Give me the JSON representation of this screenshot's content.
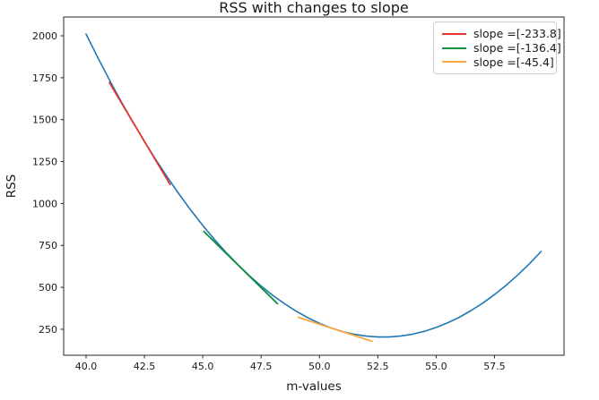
{
  "figure": {
    "title": "RSS with changes to slope",
    "xlabel": "m-values",
    "ylabel": "RSS"
  },
  "colors": {
    "curve": "#1f77b4",
    "red": "#e5352e",
    "green": "#0f8f3e",
    "orange": "#f9a63d",
    "axis": "#262626",
    "legend_border": "#cccccc"
  },
  "chart_data": {
    "type": "line",
    "title": "RSS with changes to slope",
    "xlabel": "m-values",
    "ylabel": "RSS",
    "xlim": [
      39.04,
      60.48
    ],
    "ylim": [
      95,
      2112
    ],
    "x_tick_values": [
      40.0,
      42.5,
      45.0,
      47.5,
      50.0,
      52.5,
      55.0,
      57.5
    ],
    "x_tick_labels": [
      "40.0",
      "42.5",
      "45.0",
      "47.5",
      "50.0",
      "52.5",
      "55.0",
      "57.5"
    ],
    "y_tick_values": [
      250,
      500,
      750,
      1000,
      1250,
      1500,
      1750,
      2000
    ],
    "y_tick_labels": [
      "250",
      "500",
      "750",
      "1000",
      "1250",
      "1500",
      "1750",
      "2000"
    ],
    "grid": false,
    "legend_position": "upper right",
    "series": [
      {
        "name": "RSS curve",
        "color_key": "curve",
        "line_width": 1.6,
        "in_legend": false,
        "points": [
          [
            40.0,
            2010
          ],
          [
            40.5,
            1871
          ],
          [
            41.0,
            1737
          ],
          [
            41.5,
            1609
          ],
          [
            42.0,
            1487
          ],
          [
            42.5,
            1370
          ],
          [
            43.0,
            1259
          ],
          [
            43.5,
            1153
          ],
          [
            44.0,
            1053
          ],
          [
            44.5,
            958
          ],
          [
            45.0,
            869
          ],
          [
            45.5,
            786
          ],
          [
            46.0,
            708
          ],
          [
            46.5,
            636
          ],
          [
            47.0,
            569
          ],
          [
            47.5,
            508
          ],
          [
            48.0,
            452
          ],
          [
            48.5,
            403
          ],
          [
            49.0,
            358
          ],
          [
            49.5,
            319
          ],
          [
            50.0,
            286
          ],
          [
            50.5,
            258
          ],
          [
            51.0,
            236
          ],
          [
            51.5,
            220
          ],
          [
            52.0,
            209
          ],
          [
            52.5,
            204
          ],
          [
            53.0,
            204
          ],
          [
            53.5,
            210
          ],
          [
            54.0,
            221
          ],
          [
            54.5,
            238
          ],
          [
            55.0,
            261
          ],
          [
            55.5,
            289
          ],
          [
            56.0,
            322
          ],
          [
            56.5,
            362
          ],
          [
            57.0,
            406
          ],
          [
            57.5,
            457
          ],
          [
            58.0,
            513
          ],
          [
            58.5,
            574
          ],
          [
            59.0,
            641
          ],
          [
            59.5,
            714
          ]
        ]
      },
      {
        "name": "slope =[-233.8]",
        "slope": -233.8,
        "color_key": "red",
        "line_width": 1.8,
        "in_legend": true,
        "points": [
          [
            41.0,
            1721
          ],
          [
            43.6,
            1113
          ]
        ]
      },
      {
        "name": "slope =[-136.4]",
        "slope": -136.4,
        "color_key": "green",
        "line_width": 1.8,
        "in_legend": true,
        "points": [
          [
            45.05,
            833
          ],
          [
            48.2,
            403
          ]
        ]
      },
      {
        "name": "slope =[-45.4]",
        "slope": -45.4,
        "color_key": "orange",
        "line_width": 1.8,
        "in_legend": true,
        "points": [
          [
            49.1,
            321
          ],
          [
            52.25,
            178
          ]
        ]
      }
    ]
  }
}
